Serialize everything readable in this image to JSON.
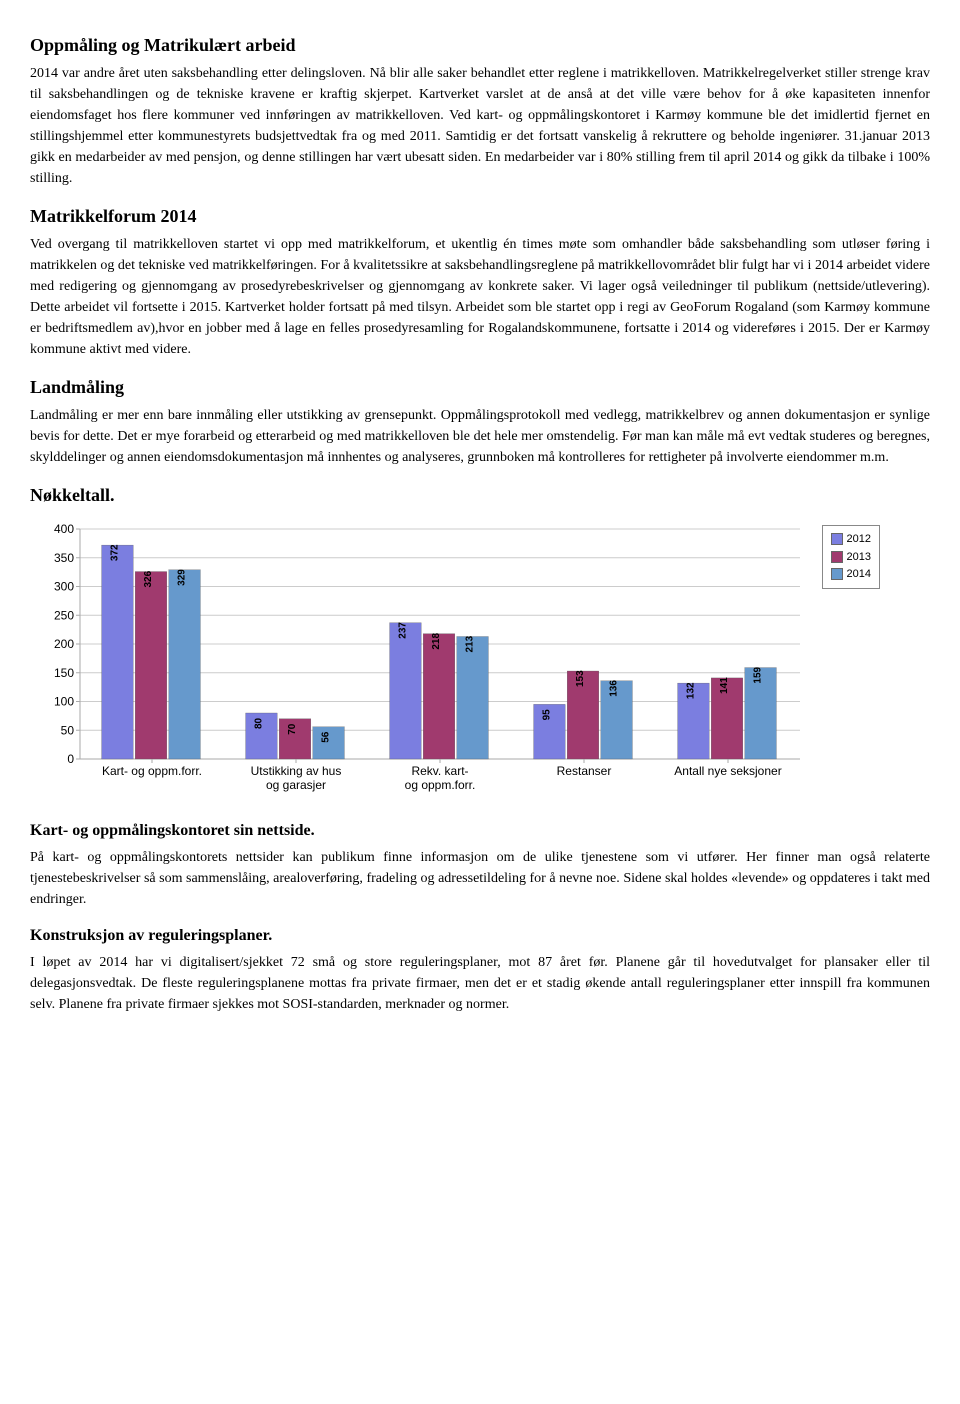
{
  "sections": {
    "s1": {
      "title": "Oppmåling og Matrikulært arbeid",
      "body": "2014 var andre året uten saksbehandling etter delingsloven. Nå blir alle saker behandlet etter reglene i matrikkelloven. Matrikkelregelverket stiller strenge krav til saksbehandlingen og de tekniske kravene er kraftig skjerpet. Kartverket varslet at de anså at det ville være behov for å øke kapasiteten innenfor eiendomsfaget hos flere kommuner ved innføringen av matrikkelloven. Ved kart- og oppmålingskontoret i Karmøy kommune ble det imidlertid fjernet en stillingshjemmel etter kommunestyrets budsjettvedtak fra og med 2011. Samtidig er det fortsatt vanskelig å rekruttere og beholde ingeniører. 31.januar 2013 gikk en medarbeider av med pensjon, og denne stillingen har vært ubesatt siden. En medarbeider var i 80% stilling frem til april 2014 og gikk da tilbake i 100% stilling."
    },
    "s2": {
      "title": "Matrikkelforum 2014",
      "body": "Ved overgang til matrikkelloven startet vi opp med matrikkelforum, et ukentlig én times møte som omhandler både saksbehandling som utløser føring i matrikkelen og det tekniske ved matrikkelføringen. For å kvalitetssikre at saksbehandlingsreglene på matrikkellovområdet blir fulgt har vi i 2014 arbeidet videre med redigering og gjennomgang av prosedyrebeskrivelser og gjennomgang av konkrete saker. Vi lager også veiledninger til publikum (nettside/utlevering). Dette arbeidet vil fortsette i 2015. Kartverket holder fortsatt på med tilsyn. Arbeidet som ble startet opp i regi av GeoForum Rogaland (som Karmøy kommune er bedriftsmedlem av),hvor en jobber med å lage en felles prosedyresamling for Rogalandskommunene, fortsatte i 2014 og videreføres i 2015. Der er Karmøy kommune aktivt med videre."
    },
    "s3": {
      "title": "Landmåling",
      "body": "Landmåling er mer enn bare innmåling eller utstikking av grensepunkt. Oppmålingsprotokoll med vedlegg, matrikkelbrev og annen dokumentasjon er synlige bevis for dette. Det er mye forarbeid og etterarbeid og med matrikkelloven ble det hele mer omstendelig. Før man kan måle må evt vedtak studeres og beregnes, skylddelinger og annen eiendomsdokumentasjon må innhentes og analyseres, grunnboken må kontrolleres for rettigheter på involverte eiendommer m.m."
    },
    "s4": {
      "title": "Nøkkeltall."
    },
    "s5": {
      "title": "Kart- og oppmålingskontoret sin nettside.",
      "body": "På kart- og oppmålingskontorets nettsider kan publikum finne informasjon om de ulike tjenestene som vi utfører. Her finner man også relaterte tjenestebeskrivelser så som sammenslåing, arealoverføring, fradeling og adressetildeling for å nevne noe. Sidene skal holdes «levende» og oppdateres i takt med endringer."
    },
    "s6": {
      "title": "Konstruksjon av reguleringsplaner.",
      "body": "I løpet av 2014 har vi digitalisert/sjekket 72 små og store reguleringsplaner, mot 87 året før. Planene går til hovedutvalget for plansaker eller til delegasjonsvedtak. De fleste reguleringsplanene mottas fra private firmaer, men det er et stadig økende antall reguleringsplaner etter innspill fra kommunen selv. Planene fra private firmaer sjekkes mot SOSI-standarden, merknader og normer."
    }
  },
  "chart": {
    "type": "bar",
    "categories": [
      "Kart- og oppm.forr.",
      "Utstikking av hus og garasjer",
      "Rekv. kart- og oppm.forr.",
      "Restanser",
      "Antall nye seksjoner"
    ],
    "series": [
      {
        "name": "2012",
        "color": "#7b7ee0",
        "values": [
          372,
          80,
          237,
          95,
          132
        ]
      },
      {
        "name": "2013",
        "color": "#a03a6e",
        "values": [
          326,
          70,
          218,
          153,
          141
        ]
      },
      {
        "name": "2014",
        "color": "#6699cc",
        "values": [
          329,
          56,
          213,
          136,
          159
        ]
      }
    ],
    "ylim": [
      0,
      400
    ],
    "ytick_step": 50,
    "background_color": "#ffffff",
    "grid_color": "#cccccc",
    "axis_color": "#aaaaaa",
    "axis_fontsize": 12,
    "bar_label_fontsize": 10,
    "legend_fontsize": 11,
    "bar_group_width": 0.7
  }
}
